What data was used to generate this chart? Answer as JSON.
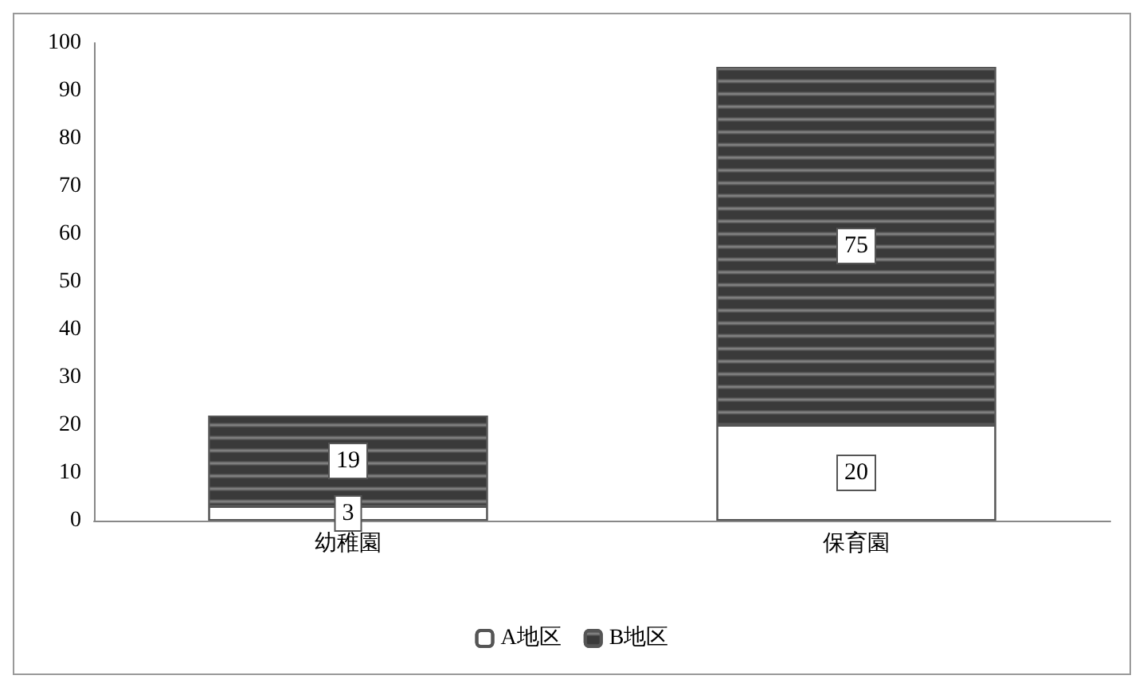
{
  "chart_data": {
    "type": "bar",
    "stacked": true,
    "categories": [
      "幼稚園",
      "保育園"
    ],
    "series": [
      {
        "name": "A地区",
        "color": "#ffffff",
        "values": [
          3,
          20
        ]
      },
      {
        "name": "B地区",
        "color": "#3a3a3a",
        "values": [
          19,
          75
        ]
      }
    ],
    "ylim": [
      0,
      100
    ],
    "yticks": [
      0,
      10,
      20,
      30,
      40,
      50,
      60,
      70,
      80,
      90,
      100
    ],
    "grid": false,
    "legend": "bottom",
    "data_labels": true
  }
}
